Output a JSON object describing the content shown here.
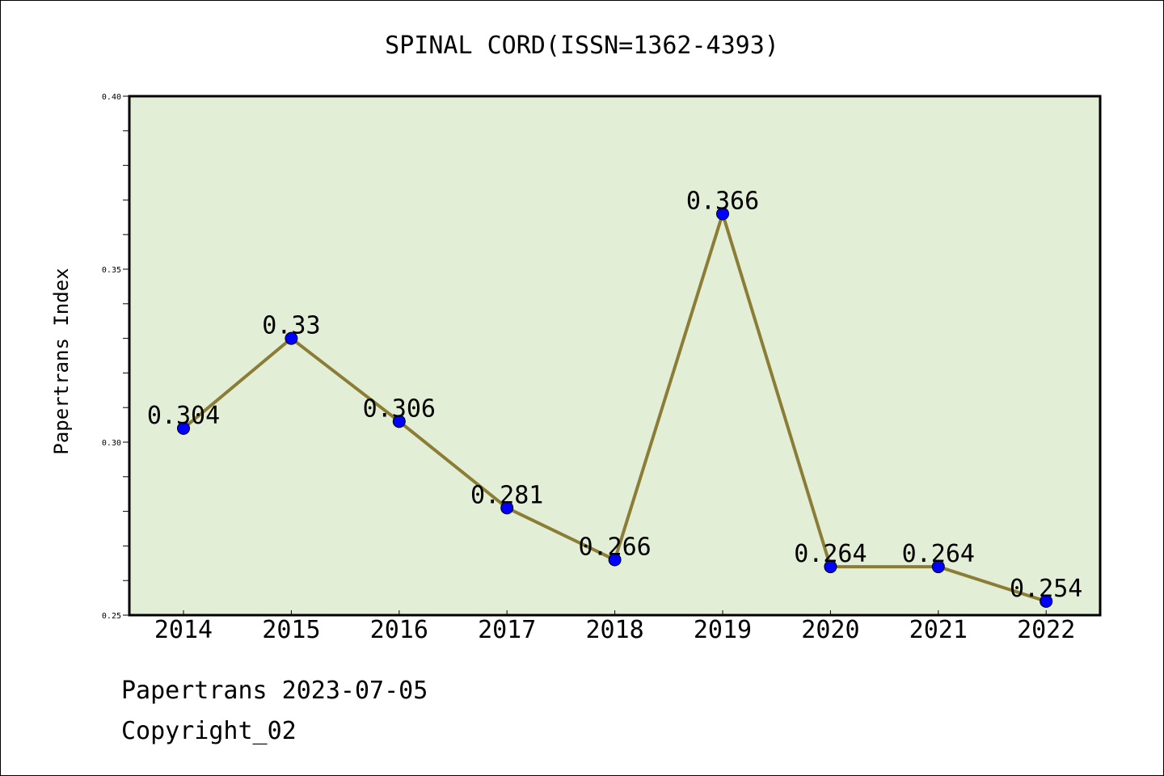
{
  "chart_data": {
    "type": "line",
    "title": "SPINAL CORD(ISSN=1362-4393)",
    "xlabel": "",
    "ylabel": "Papertrans Index",
    "categories": [
      "2014",
      "2015",
      "2016",
      "2017",
      "2018",
      "2019",
      "2020",
      "2021",
      "2022"
    ],
    "series": [
      {
        "values": [
          0.304,
          0.33,
          0.306,
          0.281,
          0.266,
          0.366,
          0.264,
          0.264,
          0.254
        ],
        "data_labels": [
          "0.304",
          "0.33",
          "0.306",
          "0.281",
          "0.266",
          "0.366",
          "0.264",
          "0.264",
          "0.254"
        ]
      }
    ],
    "ylim": [
      0.25,
      0.4
    ],
    "yticks": [
      "0.25",
      "0.30",
      "0.35",
      "0.40"
    ],
    "grid": false,
    "legend": "none"
  },
  "footer": {
    "source": "Papertrans 2023-07-05",
    "copyright": "Copyright_02"
  },
  "colors": {
    "plot_background": "#e2efd6",
    "line": "#8b7d35",
    "marker": "#0000ff"
  }
}
